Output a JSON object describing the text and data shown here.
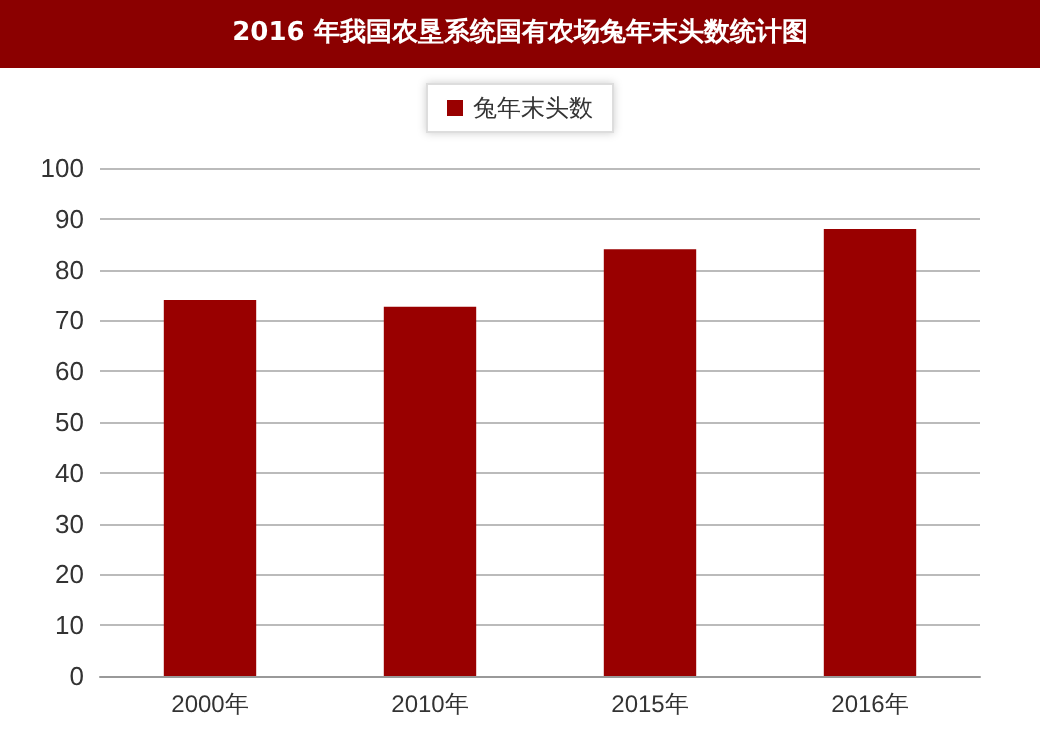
{
  "chart_data": {
    "type": "bar",
    "title": "2016 年我国农垦系统国有农场兔年末头数统计图",
    "categories": [
      "2000年",
      "2010年",
      "2015年",
      "2016年"
    ],
    "series": [
      {
        "name": "兔年末头数",
        "color": "#990000",
        "values": [
          74,
          72.7,
          84,
          88
        ]
      }
    ],
    "ylim": [
      0,
      100
    ],
    "yticks": [
      0,
      10,
      20,
      30,
      40,
      50,
      60,
      70,
      80,
      90,
      100
    ],
    "grid": "y",
    "legend": "top"
  }
}
